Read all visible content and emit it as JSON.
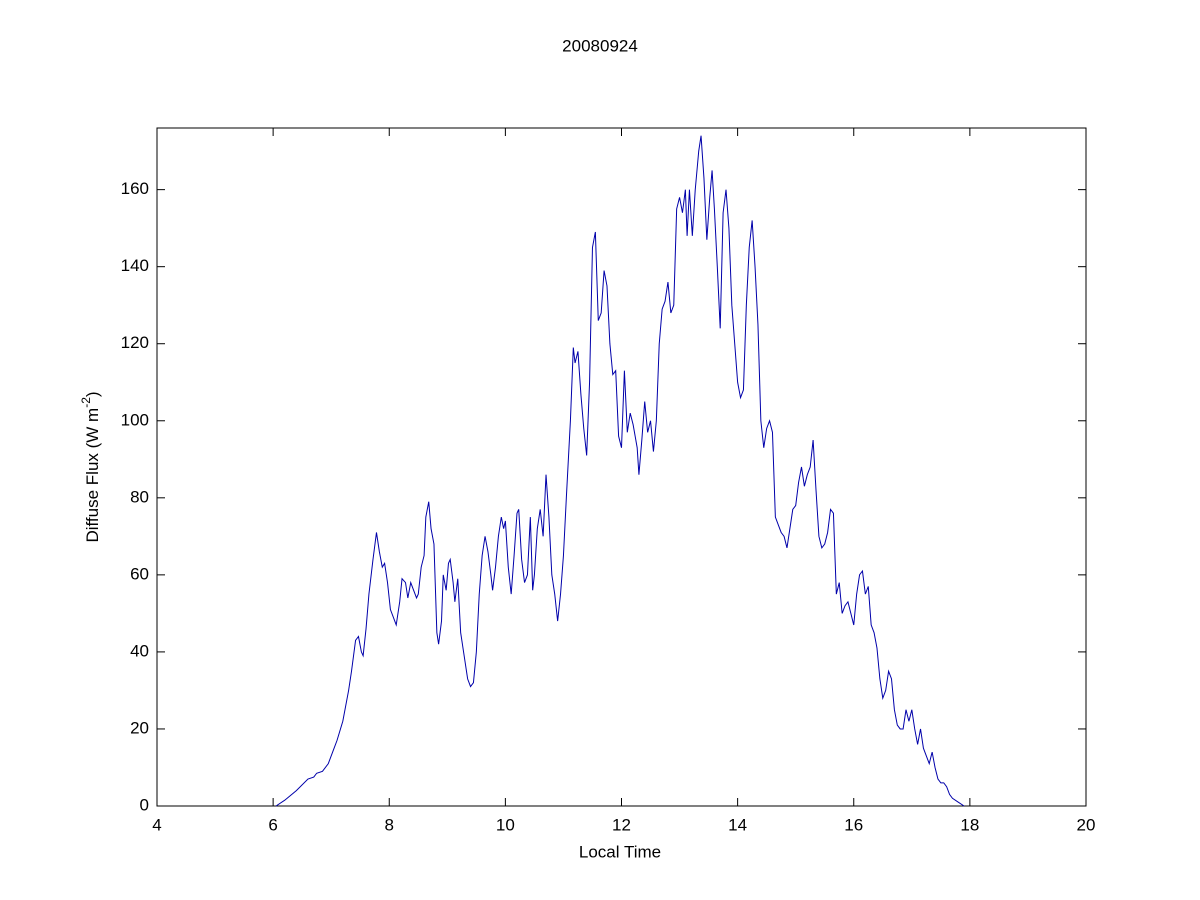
{
  "chart_data": {
    "type": "line",
    "title": "20080924",
    "xlabel": "Local Time",
    "ylabel": [
      "Diffuse Flux (W m",
      "-2",
      ")"
    ],
    "xlim": [
      4,
      20
    ],
    "xticks": [
      4,
      6,
      8,
      10,
      12,
      14,
      16,
      18,
      20
    ],
    "ylim": [
      0,
      176
    ],
    "yticks": [
      0,
      20,
      40,
      60,
      80,
      100,
      120,
      140,
      160
    ],
    "grid": false,
    "series": [
      {
        "color": "#0000aa",
        "x": [
          6.05,
          6.2,
          6.4,
          6.6,
          6.7,
          6.75,
          6.85,
          6.95,
          7.05,
          7.1,
          7.2,
          7.3,
          7.35,
          7.42,
          7.47,
          7.52,
          7.55,
          7.6,
          7.65,
          7.72,
          7.78,
          7.83,
          7.88,
          7.92,
          7.97,
          8.02,
          8.07,
          8.12,
          8.18,
          8.22,
          8.28,
          8.32,
          8.37,
          8.42,
          8.47,
          8.5,
          8.55,
          8.6,
          8.63,
          8.68,
          8.72,
          8.77,
          8.82,
          8.85,
          8.9,
          8.93,
          8.98,
          9.02,
          9.05,
          9.1,
          9.13,
          9.18,
          9.23,
          9.28,
          9.35,
          9.4,
          9.45,
          9.5,
          9.55,
          9.6,
          9.65,
          9.7,
          9.75,
          9.78,
          9.83,
          9.88,
          9.93,
          9.97,
          10.0,
          10.05,
          10.1,
          10.15,
          10.2,
          10.23,
          10.28,
          10.33,
          10.38,
          10.43,
          10.47,
          10.5,
          10.55,
          10.6,
          10.65,
          10.7,
          10.75,
          10.8,
          10.85,
          10.9,
          10.95,
          11.0,
          11.05,
          11.12,
          11.17,
          11.2,
          11.25,
          11.3,
          11.35,
          11.4,
          11.45,
          11.5,
          11.55,
          11.6,
          11.65,
          11.7,
          11.75,
          11.8,
          11.85,
          11.9,
          11.95,
          12.0,
          12.05,
          12.1,
          12.15,
          12.2,
          12.27,
          12.3,
          12.35,
          12.4,
          12.45,
          12.5,
          12.55,
          12.6,
          12.65,
          12.7,
          12.75,
          12.8,
          12.85,
          12.9,
          12.95,
          13.0,
          13.05,
          13.1,
          13.13,
          13.17,
          13.22,
          13.27,
          13.3,
          13.33,
          13.37,
          13.42,
          13.47,
          13.52,
          13.56,
          13.6,
          13.65,
          13.7,
          13.75,
          13.8,
          13.85,
          13.9,
          13.95,
          14.0,
          14.05,
          14.1,
          14.15,
          14.2,
          14.25,
          14.3,
          14.35,
          14.4,
          14.45,
          14.5,
          14.55,
          14.6,
          14.65,
          14.7,
          14.75,
          14.8,
          14.85,
          14.9,
          14.95,
          15.0,
          15.05,
          15.1,
          15.15,
          15.2,
          15.25,
          15.3,
          15.35,
          15.4,
          15.45,
          15.5,
          15.55,
          15.6,
          15.65,
          15.7,
          15.75,
          15.8,
          15.85,
          15.9,
          15.95,
          16.0,
          16.05,
          16.1,
          16.15,
          16.2,
          16.25,
          16.3,
          16.35,
          16.4,
          16.45,
          16.5,
          16.55,
          16.6,
          16.65,
          16.7,
          16.75,
          16.8,
          16.85,
          16.9,
          16.95,
          17.0,
          17.05,
          17.1,
          17.15,
          17.2,
          17.25,
          17.3,
          17.35,
          17.4,
          17.45,
          17.5,
          17.55,
          17.6,
          17.65,
          17.7,
          17.8,
          17.9
        ],
        "values": [
          0,
          1.5,
          4,
          7,
          7.5,
          8.5,
          9,
          11,
          15,
          17,
          22,
          30,
          35,
          43,
          44,
          40,
          39,
          46,
          55,
          64,
          71,
          66,
          62,
          63,
          58,
          51,
          49,
          47,
          53,
          59,
          58,
          54,
          58,
          56,
          54,
          55,
          62,
          65,
          75,
          79,
          72,
          68,
          45,
          42,
          48,
          60,
          56,
          63,
          64,
          58,
          53,
          59,
          45,
          40,
          33,
          31,
          32,
          40,
          55,
          65,
          70,
          66,
          60,
          56,
          62,
          70,
          75,
          72,
          74,
          62,
          55,
          65,
          76,
          77,
          64,
          58,
          60,
          75,
          56,
          60,
          72,
          77,
          70,
          86,
          75,
          60,
          55,
          48,
          55,
          65,
          80,
          100,
          119,
          115,
          118,
          107,
          98,
          91,
          110,
          145,
          149,
          126,
          128,
          139,
          135,
          120,
          112,
          113,
          96,
          93,
          113,
          97,
          102,
          99,
          93,
          86,
          95,
          105,
          97,
          100,
          92,
          100,
          120,
          129,
          131,
          136,
          128,
          130,
          155,
          158,
          154,
          160,
          148,
          160,
          148,
          160,
          165,
          170,
          174,
          163,
          147,
          158,
          165,
          155,
          140,
          124,
          154,
          160,
          150,
          130,
          120,
          110,
          106,
          108,
          130,
          145,
          152,
          140,
          125,
          100,
          93,
          98,
          100,
          97,
          75,
          73,
          71,
          70,
          67,
          72,
          77,
          78,
          84,
          88,
          83,
          86,
          88,
          95,
          82,
          70,
          67,
          68,
          71,
          77,
          76,
          55,
          58,
          50,
          52,
          53,
          50,
          47,
          55,
          60,
          61,
          55,
          57,
          47,
          45,
          41,
          33,
          28,
          30,
          35,
          33,
          25,
          21,
          20,
          20,
          25,
          22,
          25,
          20,
          16,
          20,
          15,
          13,
          11,
          14,
          10,
          7,
          6,
          6,
          5,
          3,
          2,
          1,
          0
        ]
      }
    ]
  }
}
